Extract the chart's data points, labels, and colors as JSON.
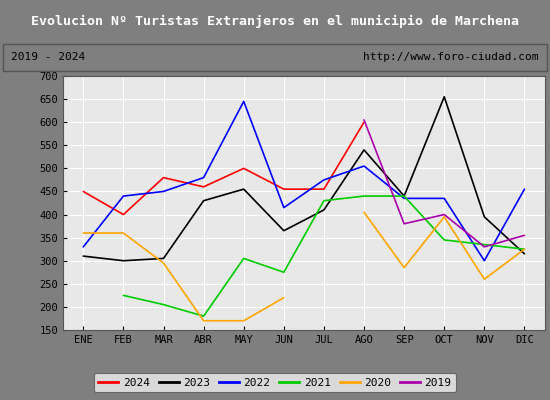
{
  "title": "Evolucion Nº Turistas Extranjeros en el municipio de Marchena",
  "subtitle_left": "2019 - 2024",
  "subtitle_right": "http://www.foro-ciudad.com",
  "months": [
    "ENE",
    "FEB",
    "MAR",
    "ABR",
    "MAY",
    "JUN",
    "JUL",
    "AGO",
    "SEP",
    "OCT",
    "NOV",
    "DIC"
  ],
  "ylim": [
    150,
    700
  ],
  "yticks": [
    150,
    200,
    250,
    300,
    350,
    400,
    450,
    500,
    550,
    600,
    650,
    700
  ],
  "series": {
    "2024": {
      "color": "#ff0000",
      "data": [
        450,
        400,
        480,
        460,
        500,
        455,
        455,
        600,
        null,
        null,
        null,
        null
      ]
    },
    "2023": {
      "color": "#000000",
      "data": [
        310,
        300,
        305,
        430,
        455,
        365,
        410,
        540,
        440,
        655,
        395,
        315
      ]
    },
    "2022": {
      "color": "#0000ff",
      "data": [
        330,
        440,
        450,
        480,
        645,
        415,
        475,
        505,
        435,
        435,
        300,
        455
      ]
    },
    "2021": {
      "color": "#00cc00",
      "data": [
        null,
        225,
        205,
        180,
        305,
        275,
        430,
        440,
        440,
        345,
        335,
        325
      ]
    },
    "2020": {
      "color": "#ffa500",
      "data": [
        360,
        360,
        295,
        170,
        170,
        220,
        null,
        405,
        285,
        395,
        260,
        325
      ]
    },
    "2019": {
      "color": "#aa00aa",
      "data": [
        null,
        null,
        null,
        null,
        null,
        null,
        null,
        605,
        380,
        400,
        330,
        355
      ]
    }
  },
  "legend_order": [
    "2024",
    "2023",
    "2022",
    "2021",
    "2020",
    "2019"
  ],
  "title_bg": "#5b9bd5",
  "title_color": "#ffffff",
  "subtitle_bg": "#ffffff",
  "plot_bg": "#e8e8e8",
  "grid_color": "#ffffff",
  "outer_bg": "#7f7f7f",
  "font_family": "monospace"
}
